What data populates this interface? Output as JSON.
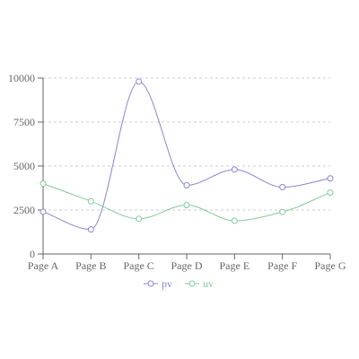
{
  "chart_data": {
    "type": "line",
    "categories": [
      "Page A",
      "Page B",
      "Page C",
      "Page D",
      "Page E",
      "Page F",
      "Page G"
    ],
    "series": [
      {
        "name": "pv",
        "color": "#8884d8",
        "values": [
          2400,
          1398,
          9800,
          3908,
          4800,
          3800,
          4300
        ]
      },
      {
        "name": "uv",
        "color": "#82ca9d",
        "values": [
          4000,
          3000,
          2000,
          2780,
          1890,
          2390,
          3490
        ]
      }
    ],
    "yticks": [
      0,
      2500,
      5000,
      7500,
      10000
    ],
    "ylim": [
      0,
      10000
    ],
    "grid": true,
    "legend": "bottom-center",
    "xlabel": "",
    "ylabel": ""
  }
}
